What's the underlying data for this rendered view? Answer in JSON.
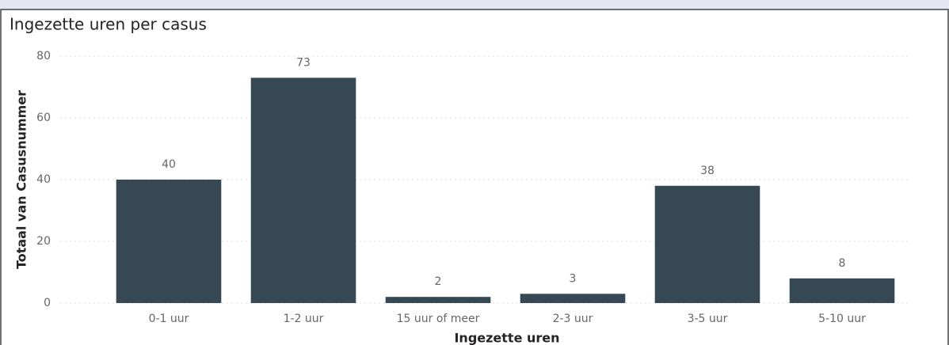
{
  "chart_data": {
    "type": "bar",
    "title": "Ingezette uren per casus",
    "x_label": "Ingezette uren",
    "y_label": "Totaal van Casusnummer",
    "categories": [
      "0-1 uur",
      "1-2 uur",
      "15 uur of meer",
      "2-3 uur",
      "3-5 uur",
      "5-10 uur"
    ],
    "values": [
      40,
      73,
      2,
      3,
      38,
      8
    ],
    "color": "#374855",
    "ylim": [
      0,
      80
    ],
    "yticks": [
      0,
      20,
      40,
      60,
      80
    ],
    "grid": true
  }
}
